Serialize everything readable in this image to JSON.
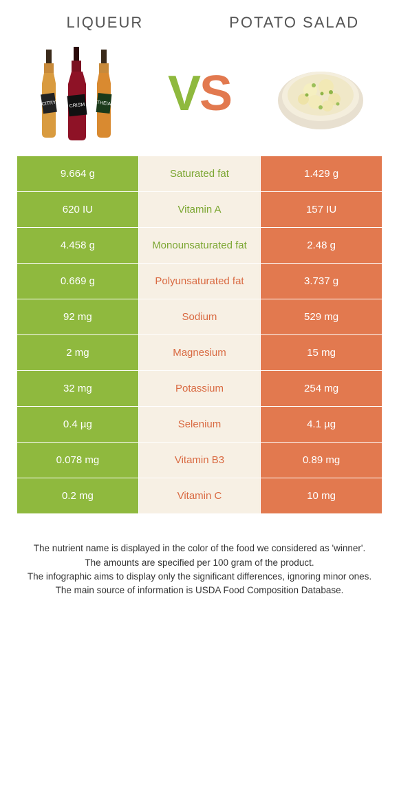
{
  "header": {
    "left_title": "Liqueur",
    "right_title": "Potato salad",
    "vs_v": "V",
    "vs_s": "S"
  },
  "colors": {
    "left_bg": "#8fb93e",
    "mid_bg": "#f7f0e4",
    "right_bg": "#e2794f",
    "mid_green": "#7ba631",
    "mid_orange": "#d96a42"
  },
  "rows": [
    {
      "left": "9.664 g",
      "label": "Saturated fat",
      "right": "1.429 g",
      "winner": "left"
    },
    {
      "left": "620 IU",
      "label": "Vitamin A",
      "right": "157 IU",
      "winner": "left"
    },
    {
      "left": "4.458 g",
      "label": "Monounsaturated fat",
      "right": "2.48 g",
      "winner": "left"
    },
    {
      "left": "0.669 g",
      "label": "Polyunsaturated fat",
      "right": "3.737 g",
      "winner": "right"
    },
    {
      "left": "92 mg",
      "label": "Sodium",
      "right": "529 mg",
      "winner": "right"
    },
    {
      "left": "2 mg",
      "label": "Magnesium",
      "right": "15 mg",
      "winner": "right"
    },
    {
      "left": "32 mg",
      "label": "Potassium",
      "right": "254 mg",
      "winner": "right"
    },
    {
      "left": "0.4 µg",
      "label": "Selenium",
      "right": "4.1 µg",
      "winner": "right"
    },
    {
      "left": "0.078 mg",
      "label": "Vitamin B3",
      "right": "0.89 mg",
      "winner": "right"
    },
    {
      "left": "0.2 mg",
      "label": "Vitamin C",
      "right": "10 mg",
      "winner": "right"
    }
  ],
  "notes": {
    "line1": "The nutrient name is displayed in the color of the food we considered as 'winner'.",
    "line2": "The amounts are specified per 100 gram of the product.",
    "line3": "The infographic aims to display only the significant differences, ignoring minor ones.",
    "line4": "The main source of information is USDA Food Composition Database."
  }
}
